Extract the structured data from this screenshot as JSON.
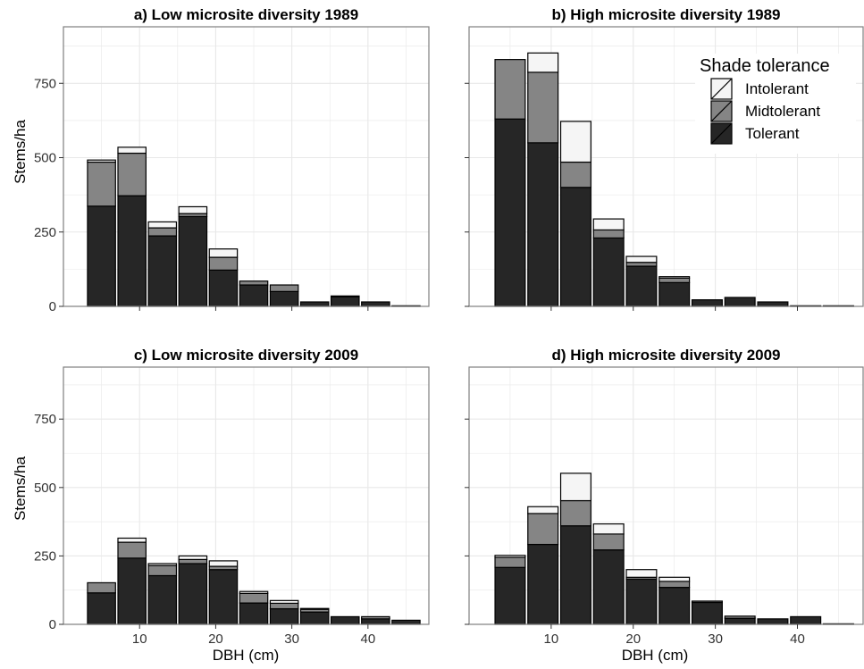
{
  "figure": {
    "xlabel": "DBH (cm)",
    "ylabel": "Stems/ha"
  },
  "legend": {
    "title": "Shade tolerance",
    "placement": "top-right",
    "items": [
      {
        "key": "intolerant",
        "label": "Intolerant"
      },
      {
        "key": "midtolerant",
        "label": "Midtolerant"
      },
      {
        "key": "tolerant",
        "label": "Tolerant"
      }
    ]
  },
  "colors": {
    "tolerant": "#262626",
    "midtolerant": "#858585",
    "intolerant": "#f5f5f5",
    "panel_background": "#ffffff",
    "grid": "#e8e8e8"
  },
  "chart_data": [
    {
      "type": "bar",
      "stacked": true,
      "title": "a) Low microsite diversity 1989",
      "xlabel": "DBH (cm)",
      "ylabel": "Stems/ha",
      "xlim": [
        0,
        48
      ],
      "ylim": [
        0,
        940
      ],
      "xticks": [
        10,
        20,
        30,
        40
      ],
      "yticks": [
        0,
        250,
        500,
        750
      ],
      "grid": true,
      "x": [
        5,
        9,
        13,
        17,
        21,
        25,
        29,
        33,
        37,
        41,
        45
      ],
      "series": [
        {
          "name": "Tolerant",
          "values": [
            337,
            372,
            237,
            302,
            122,
            72,
            50,
            15,
            32,
            15,
            2
          ]
        },
        {
          "name": "Midtolerant",
          "values": [
            148,
            143,
            27,
            10,
            43,
            13,
            22,
            0,
            3,
            0,
            0
          ]
        },
        {
          "name": "Intolerant",
          "values": [
            7,
            20,
            20,
            23,
            28,
            0,
            0,
            0,
            0,
            0,
            0
          ]
        }
      ]
    },
    {
      "type": "bar",
      "stacked": true,
      "title": "b) High microsite diversity 1989",
      "xlabel": "DBH (cm)",
      "ylabel": "Stems/ha",
      "xlim": [
        0,
        48
      ],
      "ylim": [
        0,
        940
      ],
      "xticks": [
        10,
        20,
        30,
        40
      ],
      "yticks": [
        0,
        250,
        500,
        750
      ],
      "grid": true,
      "x": [
        5,
        9,
        13,
        17,
        21,
        25,
        29,
        33,
        37,
        41,
        45
      ],
      "series": [
        {
          "name": "Tolerant",
          "values": [
            630,
            550,
            400,
            230,
            135,
            80,
            22,
            30,
            15,
            2,
            2
          ]
        },
        {
          "name": "Midtolerant",
          "values": [
            200,
            237,
            85,
            27,
            13,
            15,
            0,
            0,
            0,
            0,
            0
          ]
        },
        {
          "name": "Intolerant",
          "values": [
            0,
            65,
            137,
            37,
            20,
            5,
            0,
            0,
            0,
            0,
            0
          ]
        }
      ]
    },
    {
      "type": "bar",
      "stacked": true,
      "title": "c) Low microsite diversity 2009",
      "xlabel": "DBH (cm)",
      "ylabel": "Stems/ha",
      "xlim": [
        0,
        48
      ],
      "ylim": [
        0,
        940
      ],
      "xticks": [
        10,
        20,
        30,
        40
      ],
      "yticks": [
        0,
        250,
        500,
        750
      ],
      "grid": true,
      "x": [
        5,
        9,
        13,
        17,
        21,
        25,
        29,
        33,
        37,
        41,
        45
      ],
      "series": [
        {
          "name": "Tolerant",
          "values": [
            115,
            242,
            178,
            222,
            200,
            78,
            57,
            45,
            28,
            20,
            15
          ]
        },
        {
          "name": "Midtolerant",
          "values": [
            37,
            58,
            37,
            15,
            12,
            35,
            20,
            10,
            0,
            8,
            0
          ]
        },
        {
          "name": "Intolerant",
          "values": [
            0,
            15,
            7,
            13,
            20,
            7,
            10,
            3,
            0,
            0,
            0
          ]
        }
      ]
    },
    {
      "type": "bar",
      "stacked": true,
      "title": "d) High microsite diversity 2009",
      "xlabel": "DBH (cm)",
      "ylabel": "Stems/ha",
      "xlim": [
        0,
        48
      ],
      "ylim": [
        0,
        940
      ],
      "xticks": [
        10,
        20,
        30,
        40
      ],
      "yticks": [
        0,
        250,
        500,
        750
      ],
      "grid": true,
      "x": [
        5,
        9,
        13,
        17,
        21,
        25,
        29,
        33,
        37,
        41,
        45
      ],
      "series": [
        {
          "name": "Tolerant",
          "values": [
            208,
            292,
            360,
            272,
            165,
            135,
            80,
            22,
            20,
            28,
            2
          ]
        },
        {
          "name": "Midtolerant",
          "values": [
            37,
            113,
            92,
            58,
            7,
            22,
            5,
            8,
            0,
            0,
            0
          ]
        },
        {
          "name": "Intolerant",
          "values": [
            7,
            25,
            100,
            37,
            28,
            15,
            0,
            0,
            0,
            0,
            0
          ]
        }
      ]
    }
  ]
}
